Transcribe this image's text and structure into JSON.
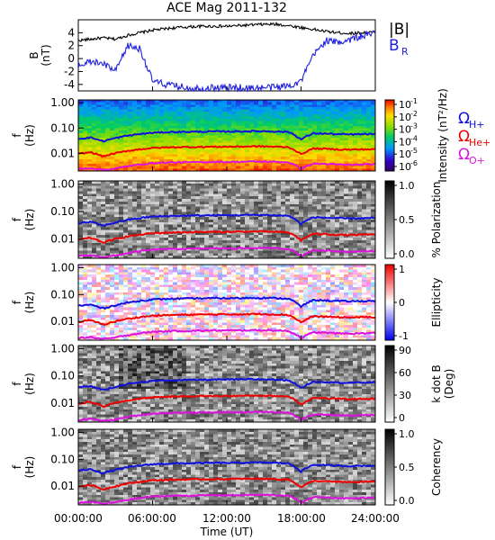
{
  "title": "ACE Mag 2011-132",
  "xlabel": "Time (UT)",
  "xticks": [
    "00:00:00",
    "06:00:00",
    "12:00:00",
    "18:00:00",
    "24:00:00"
  ],
  "colors": {
    "total": "#000000",
    "radial": "#1f1fe0",
    "h_plus": "#1010dd",
    "he_plus": "#ee0000",
    "o_plus": "#dd11dd"
  },
  "chart_data": [
    {
      "type": "line",
      "panel": "B",
      "ylabel": "B",
      "yunit": "(nT)",
      "ylim": [
        -5,
        6
      ],
      "yticks": [
        "4",
        "2",
        "0",
        "-2",
        "-4"
      ],
      "x_hours": [
        0,
        1,
        2,
        3,
        4,
        5,
        6,
        7,
        8,
        9,
        10,
        11,
        12,
        13,
        14,
        15,
        16,
        17,
        18,
        19,
        20,
        21,
        22,
        23,
        24
      ],
      "series": [
        {
          "name": "|B|",
          "values": [
            2.8,
            3.0,
            3.2,
            3.0,
            3.6,
            4.0,
            4.4,
            4.6,
            4.8,
            4.9,
            5.0,
            5.0,
            5.0,
            5.1,
            5.2,
            5.3,
            5.3,
            5.1,
            4.8,
            4.5,
            4.2,
            4.0,
            3.9,
            4.0,
            4.1
          ]
        },
        {
          "name": "B_R",
          "values": [
            -1.0,
            -0.5,
            -0.8,
            -2.0,
            2.0,
            1.5,
            -3.5,
            -4.0,
            -4.3,
            -4.5,
            -4.6,
            -4.5,
            -4.5,
            -4.5,
            -4.6,
            -4.5,
            -4.4,
            -4.2,
            -3.5,
            0.5,
            2.8,
            2.5,
            3.0,
            3.5,
            3.8
          ]
        }
      ]
    },
    {
      "type": "heatmap",
      "panel": "power",
      "ylabel": "f",
      "yunit": "(Hz)",
      "yticks": [
        "1.00",
        "0.10",
        "0.01"
      ],
      "cbar_label": "Intensity (nT²/Hz)",
      "cbar_ticks": [
        "10",
        "10",
        "10",
        "10",
        "10",
        "10"
      ],
      "cbar_exps": [
        "-1",
        "-2",
        "-3",
        "-4",
        "-5",
        "-6"
      ],
      "legend": [
        "Ω",
        "Ω",
        "Ω"
      ],
      "legend_subs": [
        "H+",
        "He+",
        "O+"
      ]
    },
    {
      "type": "heatmap",
      "panel": "polarization",
      "ylabel": "f",
      "yunit": "(Hz)",
      "yticks": [
        "1.00",
        "0.10",
        "0.01"
      ],
      "cbar_label": "% Polarization",
      "cbar_ticks": [
        "1.0",
        "0.5",
        "0.0"
      ]
    },
    {
      "type": "heatmap",
      "panel": "ellipticity",
      "ylabel": "f",
      "yunit": "(Hz)",
      "yticks": [
        "1.00",
        "0.10",
        "0.01"
      ],
      "cbar_label": "Ellipticity",
      "cbar_ticks": [
        "1",
        "0",
        "-1"
      ]
    },
    {
      "type": "heatmap",
      "panel": "kdotb",
      "ylabel": "f",
      "yunit": "(Hz)",
      "yticks": [
        "1.00",
        "0.10",
        "0.01"
      ],
      "cbar_label": "k dot B",
      "cbar_unit": "(Deg)",
      "cbar_ticks": [
        "90",
        "60",
        "30",
        "0"
      ]
    },
    {
      "type": "heatmap",
      "panel": "coherency",
      "ylabel": "f",
      "yunit": "(Hz)",
      "yticks": [
        "1.00",
        "0.10",
        "0.01"
      ],
      "cbar_label": "Coherency",
      "cbar_ticks": [
        "1.0",
        "0.5",
        "0.0"
      ]
    }
  ],
  "gyro_hz": {
    "x_hours": [
      0,
      1,
      2,
      3,
      4,
      5,
      6,
      7,
      8,
      9,
      10,
      11,
      12,
      13,
      14,
      15,
      16,
      17,
      18,
      19,
      20,
      21,
      22,
      23,
      24
    ],
    "h_plus": [
      0.038,
      0.042,
      0.03,
      0.04,
      0.05,
      0.058,
      0.065,
      0.068,
      0.07,
      0.071,
      0.072,
      0.073,
      0.073,
      0.074,
      0.075,
      0.075,
      0.073,
      0.07,
      0.035,
      0.062,
      0.06,
      0.057,
      0.056,
      0.057,
      0.058
    ],
    "he_plus": [
      0.0095,
      0.011,
      0.0075,
      0.01,
      0.0125,
      0.0145,
      0.0163,
      0.017,
      0.0175,
      0.0178,
      0.018,
      0.0182,
      0.0182,
      0.0185,
      0.0188,
      0.0188,
      0.0182,
      0.0175,
      0.009,
      0.0155,
      0.015,
      0.0143,
      0.014,
      0.0143,
      0.0145
    ],
    "o_plus": [
      0.0024,
      0.0026,
      0.0022,
      0.0025,
      0.0031,
      0.0036,
      0.0041,
      0.0043,
      0.0044,
      0.0044,
      0.0045,
      0.0046,
      0.0046,
      0.0046,
      0.0047,
      0.0047,
      0.0046,
      0.0044,
      0.0024,
      0.0039,
      0.0038,
      0.0036,
      0.0035,
      0.0036,
      0.0036
    ]
  }
}
